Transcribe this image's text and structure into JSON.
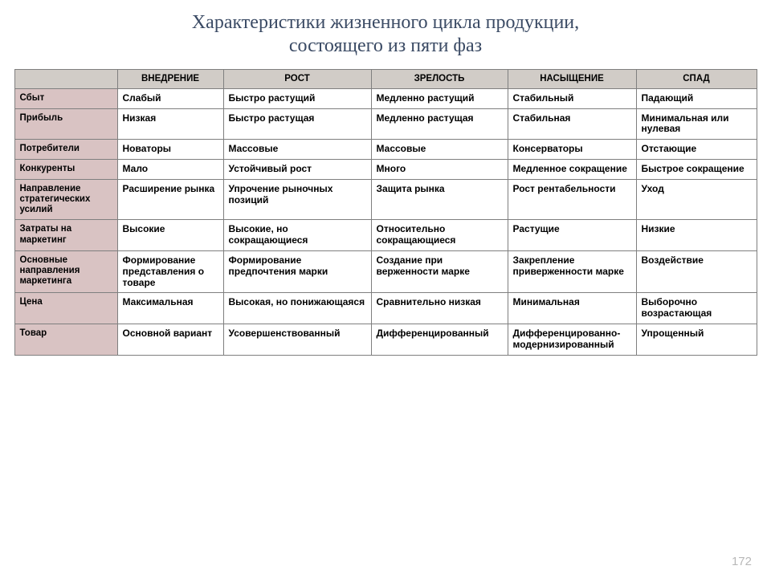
{
  "title_line1": "Характеристики жизненного цикла продукции,",
  "title_line2": "состоящего из пяти фаз",
  "columns": [
    "Внедрение",
    "Рост",
    "Зрелость",
    "Насыщение",
    "Спад"
  ],
  "rows": [
    {
      "label": "Сбыт",
      "cells": [
        "Слабый",
        "Быстро растущий",
        "Медленно растущий",
        "Стабильный",
        "Падающий"
      ]
    },
    {
      "label": "Прибыль",
      "cells": [
        "Низкая",
        "Быстро растущая",
        "Медленно растущая",
        "Стабильная",
        "Минимальная или нулевая"
      ]
    },
    {
      "label": "Потребители",
      "cells": [
        "Новаторы",
        "Массовые",
        "Массовые",
        "Консерваторы",
        "Отстающие"
      ]
    },
    {
      "label": "Конкуренты",
      "cells": [
        "Мало",
        "Устойчивый рост",
        "Много",
        "Медленное сокращение",
        "Быстрое сокращение"
      ]
    },
    {
      "label": "Направление стратегических усилий",
      "cells": [
        "Расширение рынка",
        "Упрочение рыночных позиций",
        "Защита рынка",
        "Рост рентабельности",
        "Уход"
      ]
    },
    {
      "label": "Затраты на маркетинг",
      "cells": [
        "Высокие",
        "Высокие, но сокращающиеся",
        "Относительно сокращающиеся",
        "Растущие",
        "Низкие"
      ]
    },
    {
      "label": "Основные направления маркетинга",
      "cells": [
        "Формирование представления о товаре",
        "Формирование предпочтения марки",
        "Создание при верженности марке",
        "Закрепление приверженности марке",
        "Воздействие"
      ]
    },
    {
      "label": "Цена",
      "cells": [
        "Максимальная",
        "Высокая, но понижающаяся",
        "Сравнительно низкая",
        "Минимальная",
        "Выборочно возрастающая"
      ]
    },
    {
      "label": "Товар",
      "cells": [
        "Основной вариант",
        "Усовершенствованный",
        "Дифференцированный",
        "Дифференцированно-модернизированный",
        "Упрощенный"
      ]
    }
  ],
  "page_number": "172",
  "colors": {
    "title": "#3a4a64",
    "header_bg": "#d1ccc7",
    "rowlabel_bg": "#d9c3c3",
    "border": "#7f7f7f",
    "page_num": "#b8b8b8"
  }
}
